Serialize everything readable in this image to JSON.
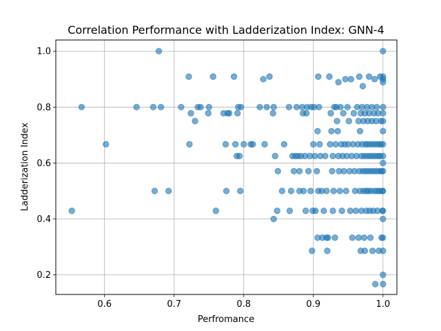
{
  "chart_data": {
    "type": "scatter",
    "title": "Correlation Performance with Ladderization Index: GNN-4",
    "xlabel": "Perfromance",
    "ylabel": "Ladderization Index",
    "xlim": [
      0.53,
      1.02
    ],
    "ylim": [
      0.13,
      1.04
    ],
    "xticks": [
      0.6,
      0.7,
      0.8,
      0.9,
      1.0
    ],
    "xtick_labels": [
      "0.6",
      "0.7",
      "0.8",
      "0.9",
      "1.0"
    ],
    "yticks": [
      0.2,
      0.4,
      0.6,
      0.8,
      1.0
    ],
    "ytick_labels": [
      "0.2",
      "0.4",
      "0.6",
      "0.8",
      "1.0"
    ],
    "grid": true,
    "marker_color": "#1f77b4",
    "marker_alpha": 0.6,
    "points": [
      [
        0.553,
        0.429
      ],
      [
        0.567,
        0.8
      ],
      [
        0.602,
        0.667
      ],
      [
        0.646,
        0.8
      ],
      [
        0.67,
        0.8
      ],
      [
        0.672,
        0.5
      ],
      [
        0.678,
        1.0
      ],
      [
        0.681,
        0.8
      ],
      [
        0.692,
        0.5
      ],
      [
        0.71,
        0.8
      ],
      [
        0.721,
        0.909
      ],
      [
        0.722,
        0.667
      ],
      [
        0.724,
        0.778
      ],
      [
        0.73,
        0.75
      ],
      [
        0.734,
        0.8
      ],
      [
        0.738,
        0.8
      ],
      [
        0.749,
        0.778
      ],
      [
        0.75,
        0.8
      ],
      [
        0.756,
        0.909
      ],
      [
        0.76,
        0.429
      ],
      [
        0.771,
        0.778
      ],
      [
        0.774,
        0.667
      ],
      [
        0.775,
        0.5
      ],
      [
        0.777,
        0.778
      ],
      [
        0.779,
        0.778
      ],
      [
        0.786,
        0.909
      ],
      [
        0.788,
        0.667
      ],
      [
        0.79,
        0.625
      ],
      [
        0.791,
        0.778
      ],
      [
        0.792,
        0.8
      ],
      [
        0.794,
        0.625
      ],
      [
        0.795,
        0.5
      ],
      [
        0.796,
        0.8
      ],
      [
        0.8,
        0.667
      ],
      [
        0.81,
        0.667
      ],
      [
        0.813,
        0.667
      ],
      [
        0.823,
        0.8
      ],
      [
        0.828,
        0.9
      ],
      [
        0.83,
        0.667
      ],
      [
        0.833,
        0.8
      ],
      [
        0.837,
        0.909
      ],
      [
        0.842,
        0.778
      ],
      [
        0.843,
        0.8
      ],
      [
        0.843,
        0.4
      ],
      [
        0.845,
        0.625
      ],
      [
        0.848,
        0.429
      ],
      [
        0.849,
        0.571
      ],
      [
        0.855,
        0.5
      ],
      [
        0.858,
        0.667
      ],
      [
        0.865,
        0.8
      ],
      [
        0.866,
        0.429
      ],
      [
        0.868,
        0.5
      ],
      [
        0.87,
        0.625
      ],
      [
        0.872,
        0.571
      ],
      [
        0.874,
        0.625
      ],
      [
        0.876,
        0.8
      ],
      [
        0.878,
        0.625
      ],
      [
        0.88,
        0.571
      ],
      [
        0.88,
        0.5
      ],
      [
        0.882,
        0.625
      ],
      [
        0.884,
        0.8
      ],
      [
        0.885,
        0.778
      ],
      [
        0.886,
        0.5
      ],
      [
        0.888,
        0.625
      ],
      [
        0.889,
        0.429
      ],
      [
        0.89,
        0.778
      ],
      [
        0.891,
        0.8
      ],
      [
        0.893,
        0.571
      ],
      [
        0.895,
        0.625
      ],
      [
        0.896,
        0.5
      ],
      [
        0.897,
        0.8
      ],
      [
        0.898,
        0.286
      ],
      [
        0.899,
        0.429
      ],
      [
        0.9,
        0.667
      ],
      [
        0.901,
        0.8
      ],
      [
        0.902,
        0.625
      ],
      [
        0.903,
        0.429
      ],
      [
        0.905,
        0.571
      ],
      [
        0.906,
        0.333
      ],
      [
        0.906,
        0.714
      ],
      [
        0.907,
        0.909
      ],
      [
        0.907,
        0.5
      ],
      [
        0.908,
        0.8
      ],
      [
        0.909,
        0.667
      ],
      [
        0.91,
        0.625
      ],
      [
        0.912,
        0.5
      ],
      [
        0.913,
        0.333
      ],
      [
        0.915,
        0.429
      ],
      [
        0.917,
        0.625
      ],
      [
        0.919,
        0.333
      ],
      [
        0.919,
        0.5
      ],
      [
        0.92,
        0.286
      ],
      [
        0.921,
        0.333
      ],
      [
        0.923,
        0.909
      ],
      [
        0.924,
        0.667
      ],
      [
        0.925,
        0.778
      ],
      [
        0.926,
        0.714
      ],
      [
        0.927,
        0.571
      ],
      [
        0.928,
        0.625
      ],
      [
        0.928,
        0.429
      ],
      [
        0.929,
        0.5
      ],
      [
        0.93,
        0.8
      ],
      [
        0.931,
        0.333
      ],
      [
        0.932,
        0.667
      ],
      [
        0.933,
        0.8
      ],
      [
        0.934,
        0.75
      ],
      [
        0.935,
        0.714
      ],
      [
        0.936,
        0.889
      ],
      [
        0.936,
        0.625
      ],
      [
        0.937,
        0.571
      ],
      [
        0.938,
        0.5
      ],
      [
        0.939,
        0.8
      ],
      [
        0.94,
        0.667
      ],
      [
        0.941,
        0.429
      ],
      [
        0.942,
        0.625
      ],
      [
        0.943,
        0.778
      ],
      [
        0.944,
        0.571
      ],
      [
        0.945,
        0.667
      ],
      [
        0.946,
        0.9
      ],
      [
        0.947,
        0.5
      ],
      [
        0.948,
        0.625
      ],
      [
        0.949,
        0.8
      ],
      [
        0.95,
        0.667
      ],
      [
        0.951,
        0.75
      ],
      [
        0.952,
        0.571
      ],
      [
        0.953,
        0.429
      ],
      [
        0.954,
        0.9
      ],
      [
        0.955,
        0.625
      ],
      [
        0.956,
        0.333
      ],
      [
        0.957,
        0.667
      ],
      [
        0.958,
        0.778
      ],
      [
        0.959,
        0.571
      ],
      [
        0.96,
        0.5
      ],
      [
        0.961,
        0.429
      ],
      [
        0.962,
        0.625
      ],
      [
        0.963,
        0.8
      ],
      [
        0.964,
        0.667
      ],
      [
        0.965,
        0.75
      ],
      [
        0.965,
        0.333
      ],
      [
        0.966,
        0.909
      ],
      [
        0.966,
        0.571
      ],
      [
        0.967,
        0.5
      ],
      [
        0.967,
        0.714
      ],
      [
        0.968,
        0.778
      ],
      [
        0.968,
        0.286
      ],
      [
        0.969,
        0.625
      ],
      [
        0.969,
        0.429
      ],
      [
        0.97,
        0.8
      ],
      [
        0.97,
        0.667
      ],
      [
        0.971,
        0.875
      ],
      [
        0.971,
        0.571
      ],
      [
        0.972,
        0.5
      ],
      [
        0.972,
        0.75
      ],
      [
        0.973,
        0.333
      ],
      [
        0.973,
        0.625
      ],
      [
        0.974,
        0.778
      ],
      [
        0.974,
        0.286
      ],
      [
        0.975,
        0.667
      ],
      [
        0.975,
        0.571
      ],
      [
        0.976,
        0.5
      ],
      [
        0.976,
        0.429
      ],
      [
        0.977,
        0.8
      ],
      [
        0.977,
        0.625
      ],
      [
        0.978,
        0.75
      ],
      [
        0.978,
        0.667
      ],
      [
        0.979,
        0.571
      ],
      [
        0.979,
        0.5
      ],
      [
        0.98,
        0.909
      ],
      [
        0.98,
        0.778
      ],
      [
        0.981,
        0.625
      ],
      [
        0.981,
        0.429
      ],
      [
        0.982,
        0.667
      ],
      [
        0.982,
        0.333
      ],
      [
        0.983,
        0.571
      ],
      [
        0.983,
        0.5
      ],
      [
        0.984,
        0.75
      ],
      [
        0.984,
        0.8
      ],
      [
        0.985,
        0.625
      ],
      [
        0.985,
        0.286
      ],
      [
        0.986,
        0.667
      ],
      [
        0.986,
        0.429
      ],
      [
        0.987,
        0.778
      ],
      [
        0.987,
        0.571
      ],
      [
        0.988,
        0.5
      ],
      [
        0.988,
        0.9
      ],
      [
        0.989,
        0.625
      ],
      [
        0.989,
        0.167
      ],
      [
        0.99,
        0.667
      ],
      [
        0.99,
        0.75
      ],
      [
        0.991,
        0.571
      ],
      [
        0.991,
        0.8
      ],
      [
        0.992,
        0.5
      ],
      [
        0.992,
        0.429
      ],
      [
        0.993,
        0.625
      ],
      [
        0.993,
        0.778
      ],
      [
        0.994,
        0.667
      ],
      [
        0.994,
        0.286
      ],
      [
        0.995,
        0.571
      ],
      [
        0.995,
        0.5
      ],
      [
        0.996,
        0.625
      ],
      [
        0.996,
        0.909
      ],
      [
        0.997,
        0.75
      ],
      [
        0.997,
        0.667
      ],
      [
        0.998,
        0.571
      ],
      [
        0.998,
        0.333
      ],
      [
        0.999,
        0.5
      ],
      [
        0.999,
        0.429
      ],
      [
        1.0,
        1.0
      ],
      [
        1.0,
        0.909
      ],
      [
        1.0,
        0.9
      ],
      [
        1.0,
        0.889
      ],
      [
        1.0,
        0.8
      ],
      [
        1.0,
        0.778
      ],
      [
        1.0,
        0.75
      ],
      [
        1.0,
        0.714
      ],
      [
        1.0,
        0.667
      ],
      [
        1.0,
        0.625
      ],
      [
        1.0,
        0.6
      ],
      [
        1.0,
        0.571
      ],
      [
        1.0,
        0.5
      ],
      [
        1.0,
        0.429
      ],
      [
        1.0,
        0.4
      ],
      [
        1.0,
        0.333
      ],
      [
        1.0,
        0.286
      ],
      [
        1.0,
        0.2
      ],
      [
        1.0,
        0.167
      ]
    ]
  }
}
